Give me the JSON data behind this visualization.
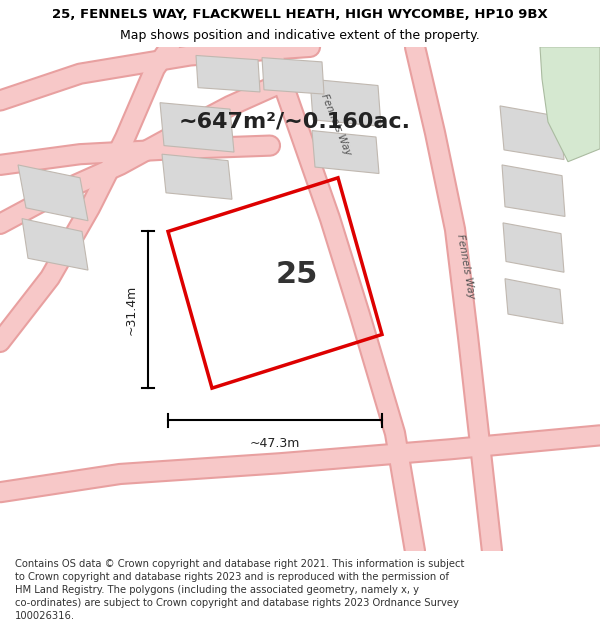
{
  "title_line1": "25, FENNELS WAY, FLACKWELL HEATH, HIGH WYCOMBE, HP10 9BX",
  "title_line2": "Map shows position and indicative extent of the property.",
  "area_text": "~647m²/~0.160ac.",
  "property_number": "25",
  "width_label": "~47.3m",
  "height_label": "~31.4m",
  "footer_lines": [
    "Contains OS data © Crown copyright and database right 2021. This information is subject",
    "to Crown copyright and database rights 2023 and is reproduced with the permission of",
    "HM Land Registry. The polygons (including the associated geometry, namely x, y",
    "co-ordinates) are subject to Crown copyright and database rights 2023 Ordnance Survey",
    "100026316."
  ],
  "map_bg": "#f5f3f0",
  "road_color": "#f7c8c8",
  "road_stroke": "#e8a0a0",
  "plot_stroke": "#dd0000",
  "building_fill": "#d8d8d8",
  "building_stroke": "#c0b8b0",
  "green_fill": "#d5e8d0",
  "green_stroke": "#aabba0",
  "title_fontsize": 9.5,
  "subtitle_fontsize": 9.0,
  "area_fontsize": 16,
  "number_fontsize": 22,
  "dim_fontsize": 9,
  "road_label_fontsize": 7.5,
  "footer_fontsize": 7.2
}
